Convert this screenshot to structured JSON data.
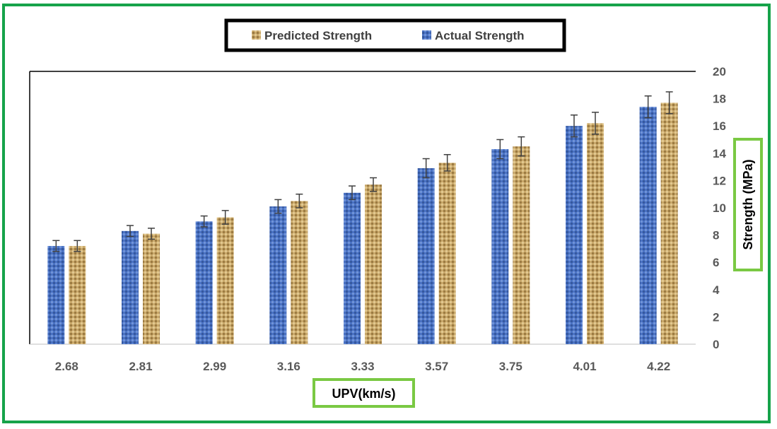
{
  "chart_data": {
    "type": "bar",
    "categories": [
      "2.68",
      "2.81",
      "2.99",
      "3.16",
      "3.33",
      "3.57",
      "3.75",
      "4.01",
      "4.22"
    ],
    "series": [
      {
        "name": "Actual Strength",
        "values": [
          7.2,
          8.3,
          9.0,
          10.1,
          11.1,
          12.9,
          14.3,
          16.0,
          17.4
        ],
        "errors": [
          0.4,
          0.4,
          0.4,
          0.5,
          0.5,
          0.7,
          0.7,
          0.8,
          0.8
        ]
      },
      {
        "name": "Predicted Strength",
        "values": [
          7.2,
          8.1,
          9.3,
          10.5,
          11.7,
          13.3,
          14.5,
          16.2,
          17.7
        ],
        "errors": [
          0.4,
          0.4,
          0.5,
          0.5,
          0.5,
          0.6,
          0.7,
          0.8,
          0.8
        ]
      }
    ],
    "legend": [
      "Predicted Strength",
      "Actual Strength"
    ],
    "xlabel": "UPV(km/s)",
    "ylabel": "Strength (MPa)",
    "ylim": [
      0,
      20
    ],
    "yticks": [
      0,
      2,
      4,
      6,
      8,
      10,
      12,
      14,
      16,
      18,
      20
    ],
    "grid": false,
    "legend_position": "top-center",
    "y_axis_side": "right",
    "colors": {
      "actual": "#4a72c4",
      "predicted": "#c9a86a",
      "frame": "#16a34a",
      "label_box": "#7ac943"
    }
  }
}
